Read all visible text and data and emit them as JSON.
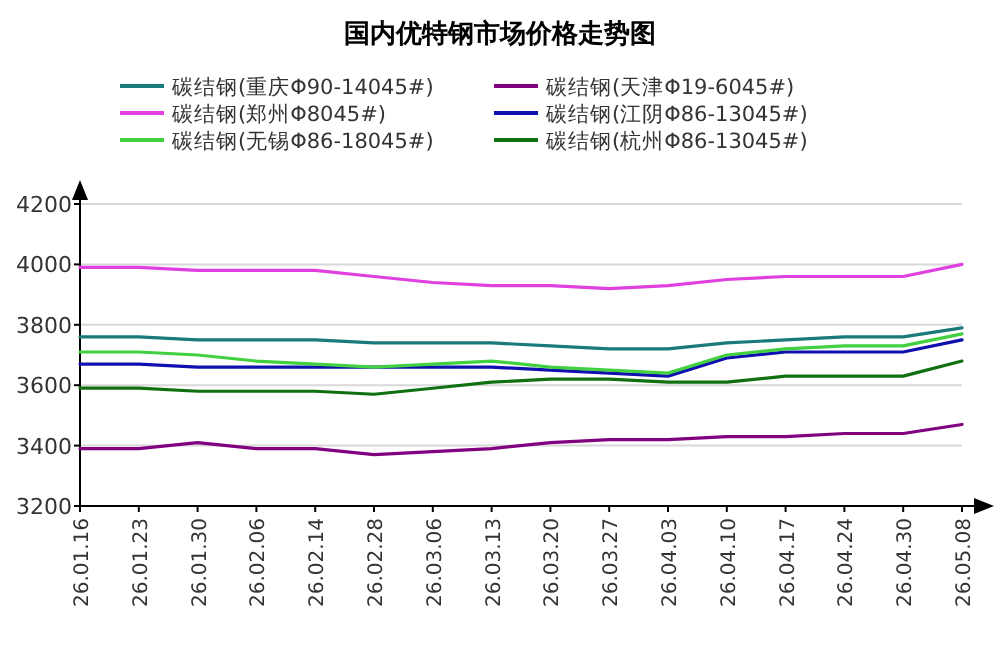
{
  "chart_data": {
    "type": "line",
    "title": "国内优特钢市场价格走势图",
    "categories": [
      "26.01.16",
      "26.01.23",
      "26.01.30",
      "26.02.06",
      "26.02.14",
      "26.02.28",
      "26.03.06",
      "26.03.13",
      "26.03.20",
      "26.03.27",
      "26.04.03",
      "26.04.10",
      "26.04.17",
      "26.04.24",
      "26.04.30",
      "26.05.08"
    ],
    "series": [
      {
        "name": "碳结钢(重庆Φ90-14045#)",
        "color": "#1a7a7a",
        "values": [
          3760,
          3760,
          3750,
          3750,
          3750,
          3740,
          3740,
          3740,
          3730,
          3720,
          3720,
          3740,
          3750,
          3760,
          3760,
          3790
        ]
      },
      {
        "name": "碳结钢(天津Φ19-6045#)",
        "color": "#800080",
        "values": [
          3390,
          3390,
          3410,
          3390,
          3390,
          3370,
          3380,
          3390,
          3410,
          3420,
          3420,
          3430,
          3430,
          3440,
          3440,
          3470
        ]
      },
      {
        "name": "碳结钢(郑州Φ8045#)",
        "color": "#e040e0",
        "values": [
          3990,
          3990,
          3980,
          3980,
          3980,
          3960,
          3940,
          3930,
          3930,
          3920,
          3930,
          3950,
          3960,
          3960,
          3960,
          4000
        ]
      },
      {
        "name": "碳结钢(江阴Φ86-13045#)",
        "color": "#1010b0",
        "values": [
          3670,
          3670,
          3660,
          3660,
          3660,
          3660,
          3660,
          3660,
          3650,
          3640,
          3630,
          3690,
          3710,
          3710,
          3710,
          3750
        ]
      },
      {
        "name": "碳结钢(无锡Φ86-18045#)",
        "color": "#40d040",
        "values": [
          3710,
          3710,
          3700,
          3680,
          3670,
          3660,
          3670,
          3680,
          3660,
          3650,
          3640,
          3700,
          3720,
          3730,
          3730,
          3770
        ]
      },
      {
        "name": "碳结钢(杭州Φ86-13045#)",
        "color": "#107010",
        "values": [
          3590,
          3590,
          3580,
          3580,
          3580,
          3570,
          3590,
          3610,
          3620,
          3620,
          3610,
          3610,
          3630,
          3630,
          3630,
          3680
        ]
      }
    ],
    "ylim": [
      3200,
      4200
    ],
    "yticks": [
      3200,
      3400,
      3600,
      3800,
      4000,
      4200
    ],
    "grid": "y",
    "legend": "top",
    "marker": "none",
    "line_style": "solid"
  }
}
